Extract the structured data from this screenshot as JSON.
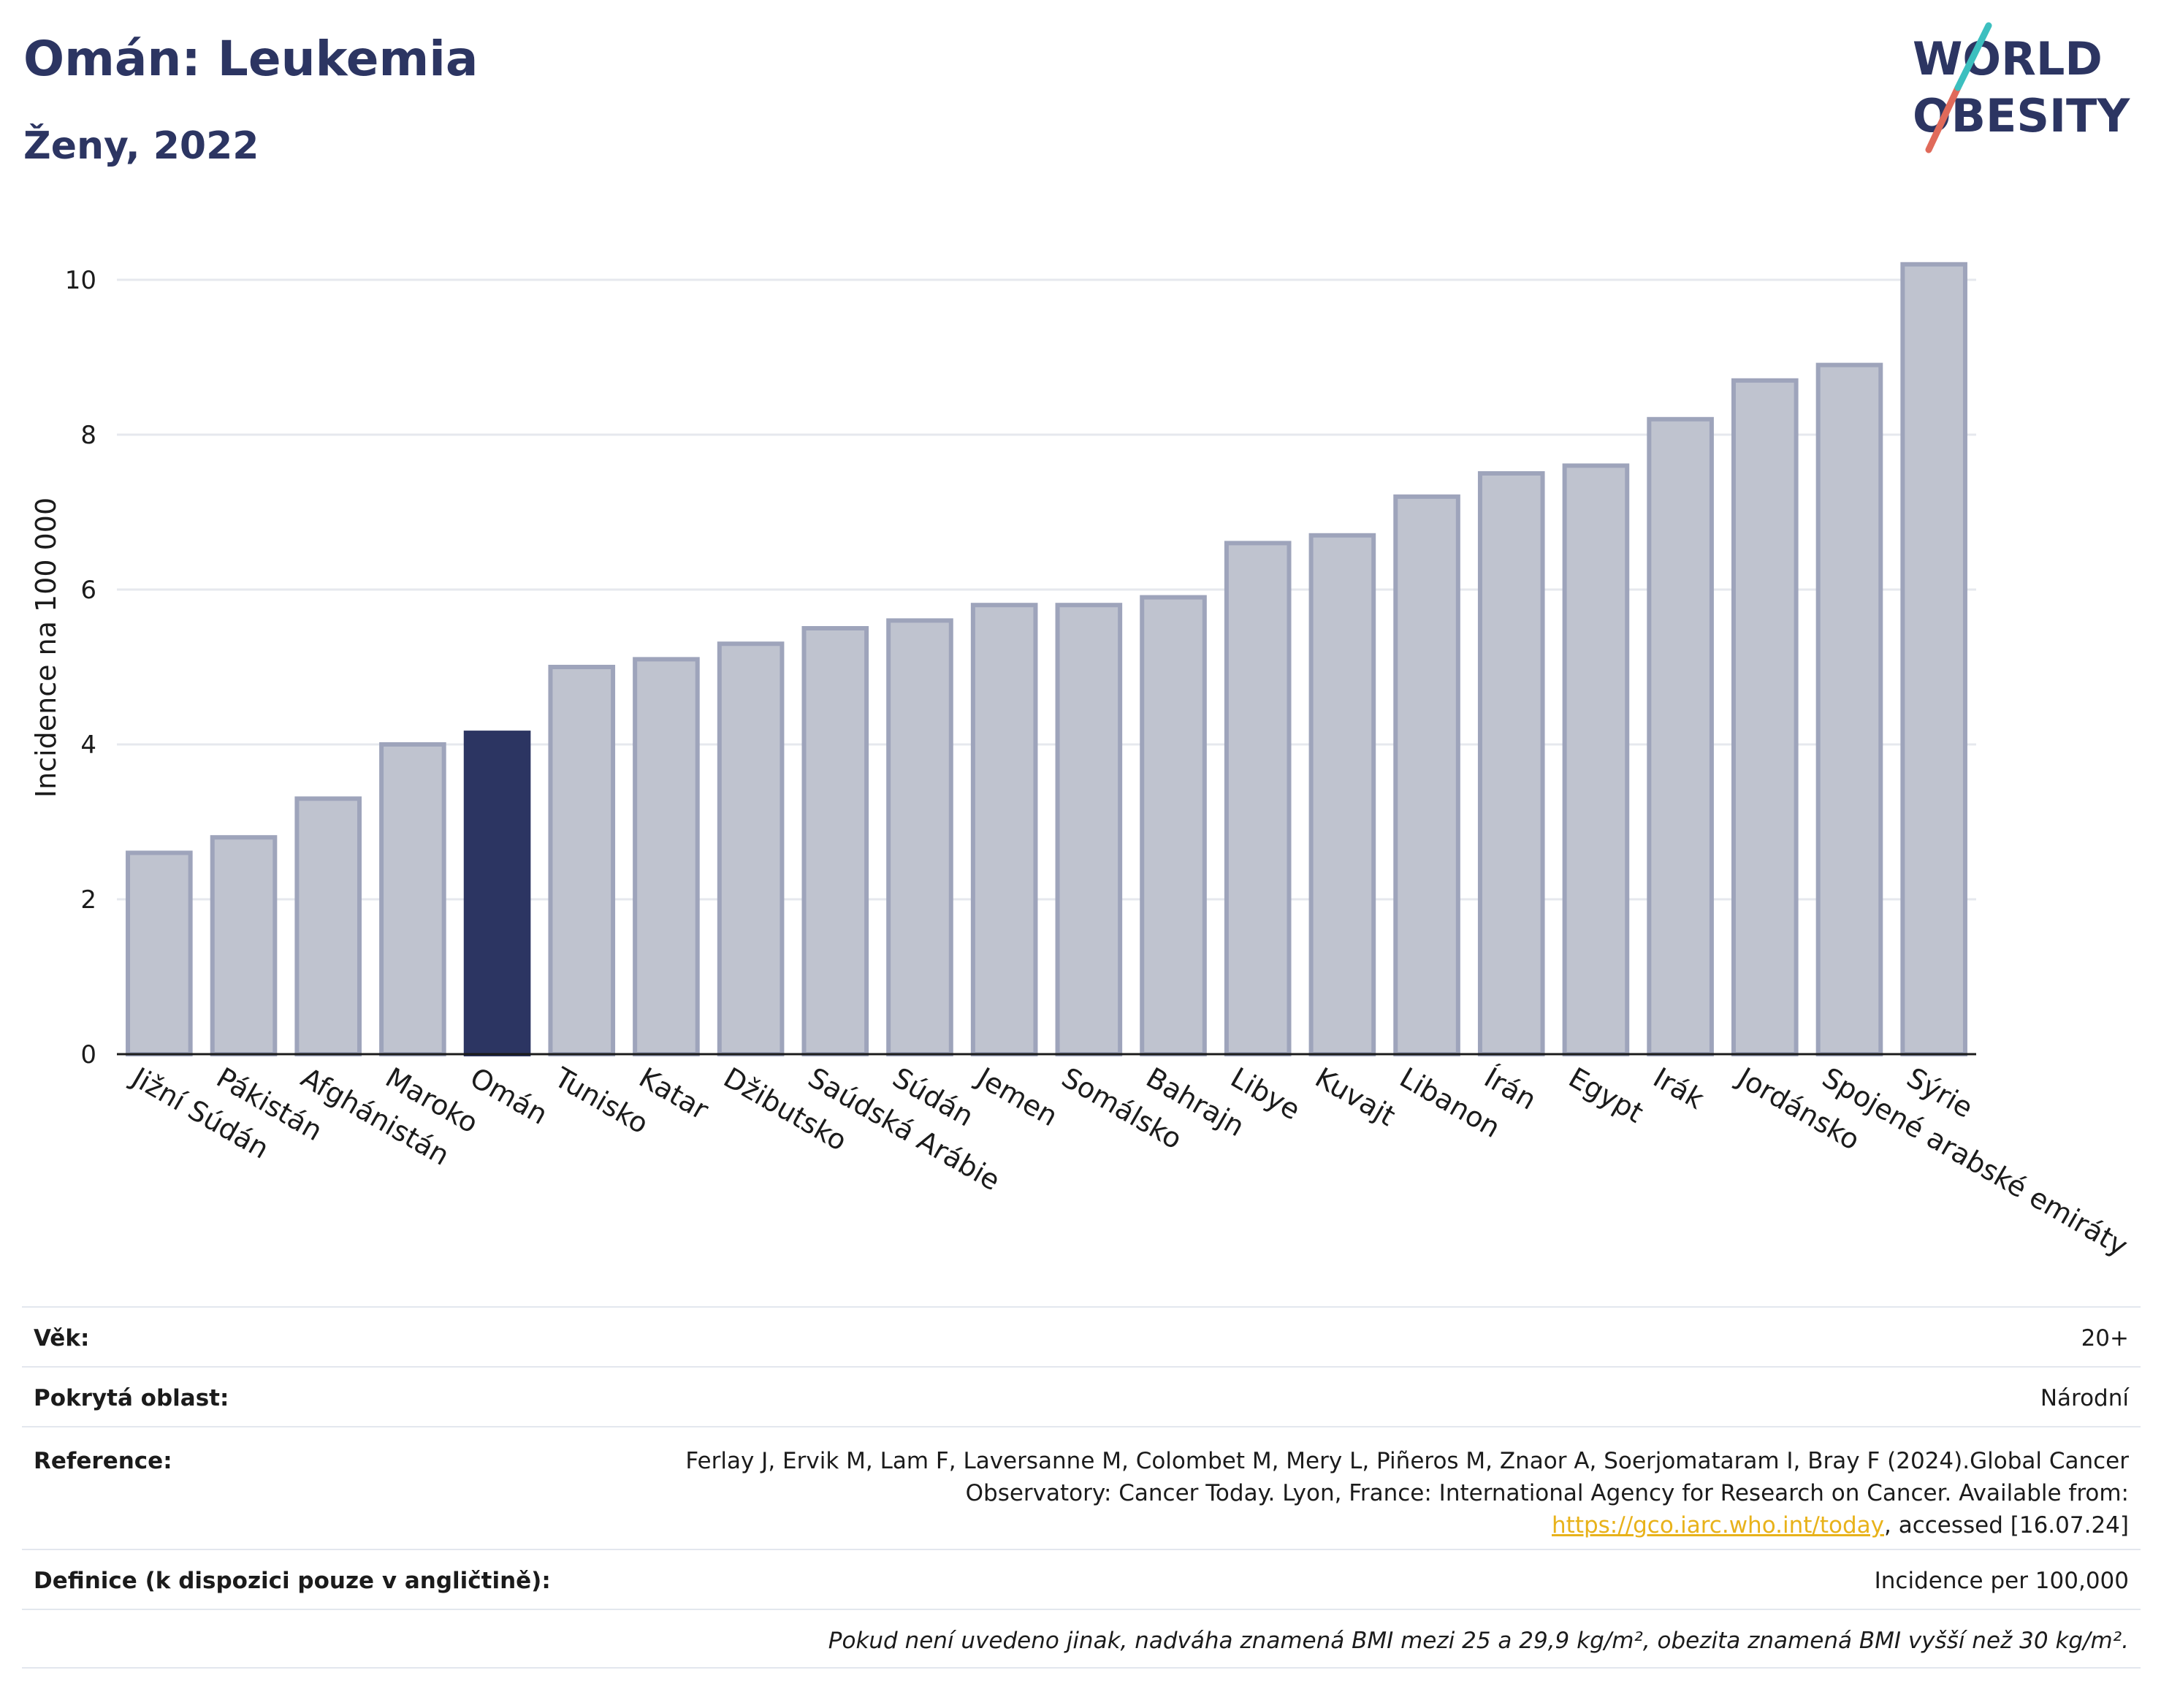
{
  "header": {
    "title": "Omán: Leukemia",
    "subtitle": "Ženy, 2022"
  },
  "logo": {
    "line1": "WORLD",
    "line2": "OBESITY",
    "colors": {
      "text": "#2c3562",
      "slash_red": "#e06a5a",
      "slash_teal": "#3cbfbf"
    }
  },
  "colors": {
    "bar": "#bfc3cf",
    "bar_border": "#9ea4bb",
    "highlight": "#2c3562",
    "grid": "#e6e8ee",
    "axis": "#1b1b1b"
  },
  "chart_data": {
    "type": "bar",
    "title": "Omán: Leukemia",
    "subtitle": "Ženy, 2022",
    "xlabel": "",
    "ylabel": "Incidence na 100 000",
    "ylim": [
      0,
      10.5
    ],
    "yticks": [
      0,
      2,
      4,
      6,
      8,
      10
    ],
    "grid": true,
    "highlight": "Omán",
    "categories": [
      "Jižní Súdán",
      "Pákistán",
      "Afghánistán",
      "Maroko",
      "Omán",
      "Tunisko",
      "Katar",
      "Džibutsko",
      "Saúdská Arábie",
      "Súdán",
      "Jemen",
      "Somálsko",
      "Bahrajn",
      "Libye",
      "Kuvajt",
      "Libanon",
      "Írán",
      "Egypt",
      "Irák",
      "Jordánsko",
      "Spojené arabské emiráty",
      "Sýrie"
    ],
    "values": [
      2.6,
      2.8,
      3.3,
      4.0,
      4.15,
      5.0,
      5.1,
      5.3,
      5.5,
      5.6,
      5.8,
      5.8,
      5.9,
      6.6,
      6.7,
      7.2,
      7.5,
      7.6,
      8.2,
      8.7,
      8.9,
      10.2
    ]
  },
  "info": {
    "age_label": "Věk:",
    "age_value": "20+",
    "area_label": "Pokrytá oblast:",
    "area_value": "Národní",
    "ref_label": "Reference:",
    "ref_text_1": "Ferlay J, Ervik M, Lam F, Laversanne M, Colombet M, Mery L, Piñeros M, Znaor A, Soerjomataram I, Bray F (2024).Global Cancer Observatory: Cancer Today. Lyon, France: International Agency for Research on Cancer. Available from: ",
    "ref_link": "https://gco.iarc.who.int/today",
    "ref_text_2": ", accessed [16.07.24]",
    "def_label": "Definice (k dispozici pouze v angličtině):",
    "def_value": "Incidence per 100,000",
    "note": "Pokud není uvedeno jinak, nadváha znamená BMI mezi 25 a 29,9 kg/m², obezita znamená BMI vyšší než 30 kg/m²."
  }
}
